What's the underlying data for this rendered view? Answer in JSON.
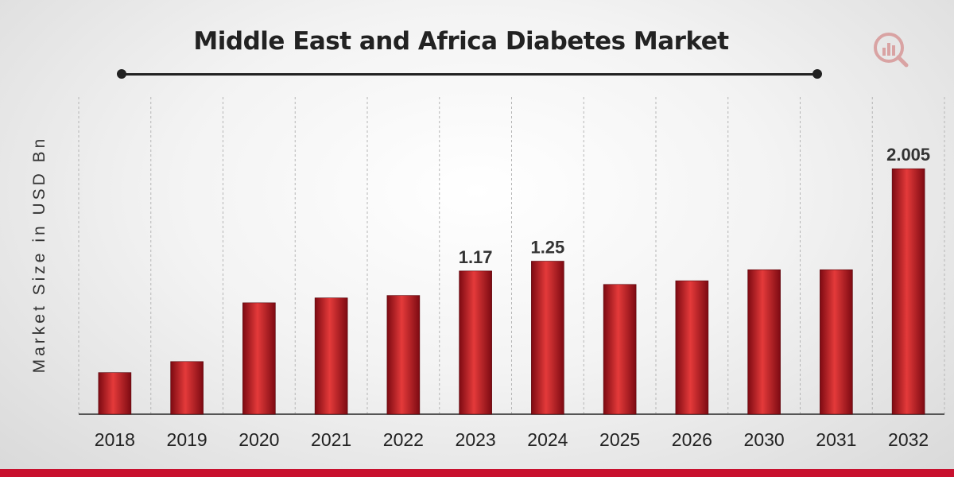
{
  "colors": {
    "bar": "#c8102e",
    "bar_dark": "#7d0a12",
    "bar_light": "#e43a3a",
    "title": "#222222",
    "axis": "#555555",
    "footer": "#c8102e"
  },
  "logo_icon": "bar-chart-magnifier-icon",
  "chart_data": {
    "type": "bar",
    "title": "Middle East and Africa Diabetes Market",
    "xlabel": "",
    "ylabel": "Market Size in USD Bn",
    "categories": [
      "2018",
      "2019",
      "2020",
      "2021",
      "2022",
      "2023",
      "2024",
      "2025",
      "2026",
      "2030",
      "2031",
      "2032"
    ],
    "values": [
      0.34,
      0.43,
      0.91,
      0.95,
      0.97,
      1.17,
      1.25,
      1.06,
      1.09,
      1.18,
      1.18,
      2.005
    ],
    "data_labels": [
      "",
      "",
      "",
      "",
      "",
      "1.17",
      "1.25",
      "",
      "",
      "",
      "",
      "2.005"
    ],
    "grid": "vertical-dashed",
    "legend": "none"
  }
}
